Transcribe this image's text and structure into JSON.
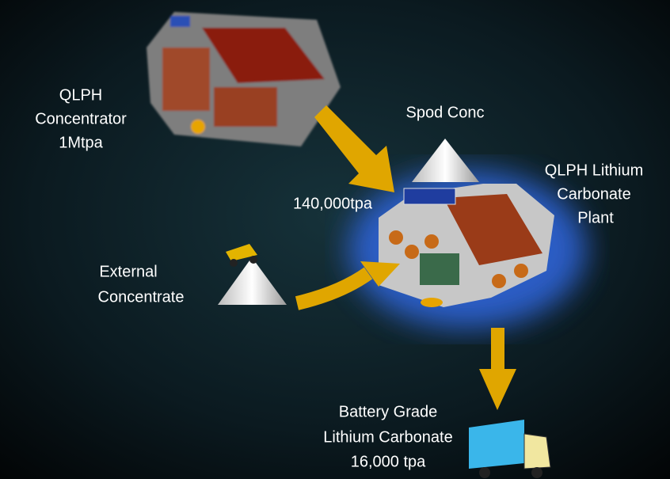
{
  "concentrator": {
    "lines": [
      "QLPH",
      "Concentrator",
      "1Mtpa"
    ]
  },
  "feed": {
    "label": "Spod Conc",
    "rate": "140,000tpa"
  },
  "plant": {
    "lines": [
      "QLPH Lithium",
      "Carbonate",
      "Plant"
    ]
  },
  "external": {
    "lines": [
      "External",
      "Concentrate"
    ]
  },
  "product": {
    "lines": [
      "Battery Grade",
      "Lithium Carbonate",
      "16,000 tpa"
    ]
  }
}
